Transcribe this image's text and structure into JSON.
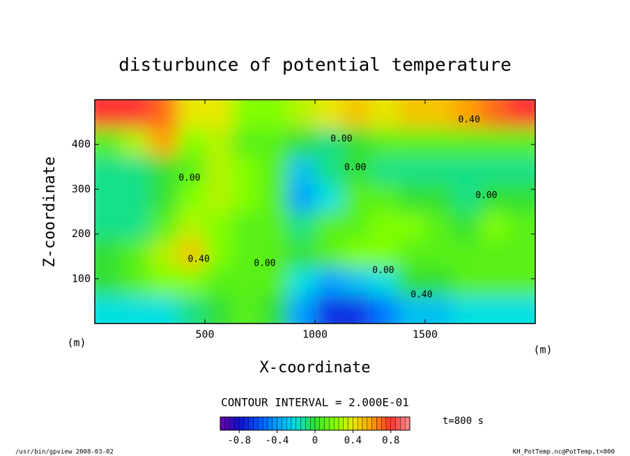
{
  "chart_data": {
    "type": "contour",
    "title": "disturbunce of potential temperature",
    "x_label": "X-coordinate",
    "y_label": "Z-coordinate",
    "x_unit": "(m)",
    "y_unit": "(m)",
    "xlim": [
      0,
      2000
    ],
    "ylim": [
      0,
      500
    ],
    "xticks": [
      500,
      1000,
      1500
    ],
    "yticks": [
      100,
      200,
      300,
      400
    ],
    "x": [
      62.5,
      187.5,
      312.5,
      437.5,
      562.5,
      687.5,
      812.5,
      937.5,
      1062.5,
      1187.5,
      1312.5,
      1437.5,
      1562.5,
      1687.5,
      1812.5,
      1937.5
    ],
    "y": [
      31.25,
      93.75,
      156.25,
      218.75,
      281.25,
      343.75,
      406.25,
      468.75
    ],
    "z": [
      [
        -0.2,
        -0.2,
        -0.2,
        -0.1,
        0.0,
        0.1,
        0.0,
        -0.4,
        -0.7,
        -0.7,
        -0.5,
        -0.3,
        -0.3,
        -0.2,
        -0.2,
        -0.2
      ],
      [
        0.0,
        0.1,
        0.2,
        0.2,
        0.1,
        0.1,
        0.1,
        -0.2,
        -0.4,
        -0.3,
        -0.2,
        0.0,
        0.0,
        0.1,
        0.1,
        0.1
      ],
      [
        0.0,
        0.1,
        0.3,
        0.5,
        0.2,
        0.1,
        0.1,
        0.0,
        0.1,
        0.2,
        0.2,
        0.1,
        0.1,
        0.1,
        0.1,
        0.1
      ],
      [
        -0.1,
        -0.1,
        0.1,
        0.3,
        0.2,
        0.1,
        0.1,
        -0.1,
        0.1,
        0.1,
        0.2,
        0.2,
        0.1,
        0.0,
        0.2,
        0.1
      ],
      [
        -0.1,
        -0.1,
        0.0,
        0.2,
        0.3,
        0.2,
        0.1,
        -0.4,
        -0.2,
        0.1,
        0.1,
        0.0,
        0.0,
        -0.1,
        0.0,
        0.0
      ],
      [
        -0.1,
        -0.1,
        0.0,
        0.1,
        0.3,
        0.2,
        0.1,
        -0.3,
        -0.1,
        0.0,
        -0.1,
        -0.1,
        -0.1,
        -0.1,
        -0.1,
        -0.1
      ],
      [
        0.1,
        0.3,
        0.6,
        0.2,
        0.3,
        0.1,
        0.1,
        0.0,
        -0.1,
        0.0,
        0.1,
        0.1,
        0.1,
        0.1,
        0.1,
        0.1
      ],
      [
        0.8,
        0.8,
        0.7,
        0.4,
        0.4,
        0.2,
        0.2,
        0.3,
        0.4,
        0.5,
        0.4,
        0.5,
        0.5,
        0.6,
        0.7,
        0.8
      ]
    ],
    "contour_labels": [
      {
        "text": "0.40",
        "x": 1700,
        "y": 455
      },
      {
        "text": "0.00",
        "x": 1120,
        "y": 412
      },
      {
        "text": "0.00",
        "x": 1183,
        "y": 348
      },
      {
        "text": "0.00",
        "x": 1778,
        "y": 286
      },
      {
        "text": "0.00",
        "x": 430,
        "y": 325
      },
      {
        "text": "0.40",
        "x": 472,
        "y": 143
      },
      {
        "text": "0.00",
        "x": 772,
        "y": 134
      },
      {
        "text": "0.00",
        "x": 1310,
        "y": 118
      },
      {
        "text": "0.40",
        "x": 1484,
        "y": 64
      }
    ],
    "contour_interval_text": "CONTOUR INTERVAL = 2.000E-01",
    "colormap": [
      "#6a00a8",
      "#1010c8",
      "#0050ff",
      "#00a0ff",
      "#00e0e0",
      "#30e030",
      "#80ff00",
      "#e8e800",
      "#ffa000",
      "#ff3030",
      "#ff9090"
    ],
    "colorbar": {
      "lim": [
        -1,
        1
      ],
      "ticks": [
        -0.8,
        -0.4,
        0,
        0.4,
        0.8
      ]
    },
    "time_text": "t=800 s",
    "footer_left": "/usr/bin/gpview   2008-03-02",
    "footer_right": "KH_PotTemp.nc@PotTemp,t=800"
  }
}
